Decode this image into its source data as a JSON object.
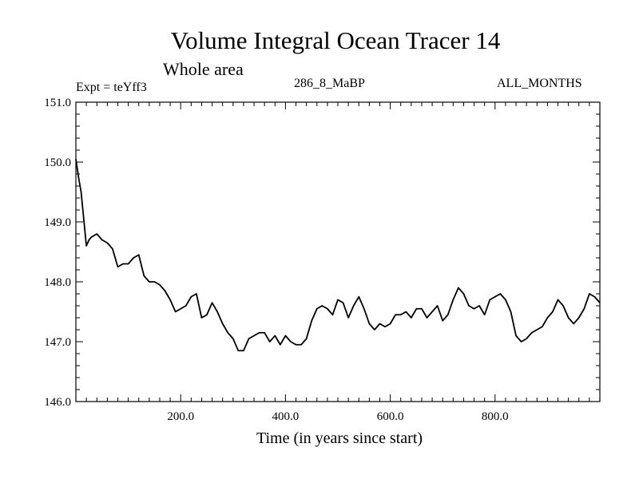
{
  "chart_data": {
    "type": "line",
    "title": "Volume Integral Ocean Tracer 14",
    "subtitle": "Whole area",
    "experiment_label": "Expt = teYff3",
    "period_label": "286_8_MaBP",
    "months_label": "ALL_MONTHS",
    "xlabel": "Time (in years since start)",
    "ylabel": "",
    "xlim": [
      0,
      1000
    ],
    "ylim": [
      146.0,
      151.0
    ],
    "x_ticks": [
      200,
      400,
      600,
      800
    ],
    "x_tick_labels": [
      "200.0",
      "400.0",
      "600.0",
      "800.0"
    ],
    "y_ticks": [
      146.0,
      147.0,
      148.0,
      149.0,
      150.0,
      151.0
    ],
    "y_tick_labels": [
      "146.0",
      "147.0",
      "148.0",
      "149.0",
      "150.0",
      "151.0"
    ],
    "grid": false,
    "series": [
      {
        "name": "Volume Integral Ocean Tracer 14",
        "color": "#000000",
        "x": [
          0,
          5,
          10,
          15,
          20,
          25,
          30,
          40,
          50,
          60,
          70,
          80,
          90,
          100,
          110,
          120,
          130,
          140,
          150,
          160,
          170,
          180,
          190,
          200,
          210,
          220,
          230,
          240,
          250,
          260,
          270,
          280,
          290,
          300,
          310,
          320,
          330,
          340,
          350,
          360,
          370,
          380,
          390,
          400,
          410,
          420,
          430,
          440,
          450,
          460,
          470,
          480,
          490,
          500,
          510,
          520,
          530,
          540,
          550,
          560,
          570,
          580,
          590,
          600,
          610,
          620,
          630,
          640,
          650,
          660,
          670,
          680,
          690,
          700,
          710,
          720,
          730,
          740,
          750,
          760,
          770,
          780,
          790,
          800,
          810,
          820,
          830,
          840,
          850,
          860,
          870,
          880,
          890,
          900,
          910,
          920,
          930,
          940,
          950,
          960,
          970,
          980,
          990,
          1000
        ],
        "values": [
          150.05,
          149.75,
          149.5,
          149.05,
          148.6,
          148.7,
          148.75,
          148.8,
          148.7,
          148.65,
          148.55,
          148.25,
          148.3,
          148.3,
          148.4,
          148.45,
          148.1,
          148.0,
          148.0,
          147.95,
          147.85,
          147.7,
          147.5,
          147.55,
          147.6,
          147.75,
          147.8,
          147.4,
          147.45,
          147.65,
          147.5,
          147.3,
          147.15,
          147.05,
          146.85,
          146.85,
          147.05,
          147.1,
          147.15,
          147.15,
          147.0,
          147.1,
          146.95,
          147.1,
          147.0,
          146.95,
          146.95,
          147.05,
          147.35,
          147.55,
          147.6,
          147.55,
          147.45,
          147.7,
          147.65,
          147.4,
          147.6,
          147.75,
          147.55,
          147.3,
          147.2,
          147.3,
          147.25,
          147.3,
          147.45,
          147.45,
          147.5,
          147.4,
          147.55,
          147.55,
          147.4,
          147.5,
          147.6,
          147.35,
          147.45,
          147.7,
          147.9,
          147.8,
          147.6,
          147.55,
          147.6,
          147.45,
          147.7,
          147.75,
          147.8,
          147.7,
          147.5,
          147.1,
          147.0,
          147.05,
          147.15,
          147.2,
          147.25,
          147.4,
          147.5,
          147.7,
          147.6,
          147.4,
          147.3,
          147.4,
          147.55,
          147.8,
          147.75,
          147.65
        ]
      }
    ]
  }
}
